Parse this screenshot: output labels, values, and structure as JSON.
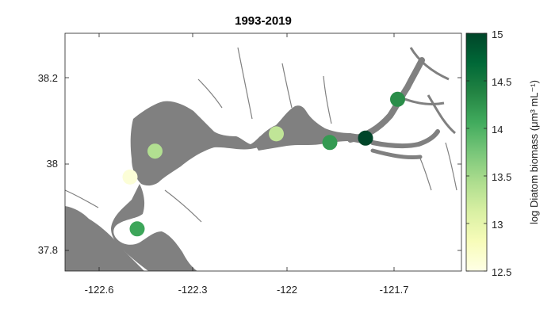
{
  "title": "1993-2019",
  "map": {
    "x_ticks": [
      "-122.6",
      "-122.3",
      "-122",
      "-121.7"
    ],
    "y_ticks": [
      "38.2",
      "38",
      "37.8"
    ]
  },
  "colorbar": {
    "label": "log Diatom biomass (μm³ mL⁻¹)",
    "ticks": [
      "15",
      "14.5",
      "14",
      "13.5",
      "13",
      "12.5"
    ],
    "min": 12.5,
    "max": 15,
    "colors": [
      "#ffffe5",
      "#f7fcb9",
      "#d9f0a3",
      "#addd8e",
      "#78c679",
      "#41ab5d",
      "#238443",
      "#006837",
      "#004529"
    ]
  },
  "stations": [
    {
      "lon": -122.42,
      "lat": 37.85,
      "value": 14.1
    },
    {
      "lon": -122.44,
      "lat": 37.97,
      "value": 12.6
    },
    {
      "lon": -122.37,
      "lat": 38.03,
      "value": 13.4
    },
    {
      "lon": -122.03,
      "lat": 38.07,
      "value": 13.3
    },
    {
      "lon": -121.88,
      "lat": 38.05,
      "value": 14.2
    },
    {
      "lon": -121.78,
      "lat": 38.06,
      "value": 15.0
    },
    {
      "lon": -121.69,
      "lat": 38.15,
      "value": 14.3
    }
  ]
}
